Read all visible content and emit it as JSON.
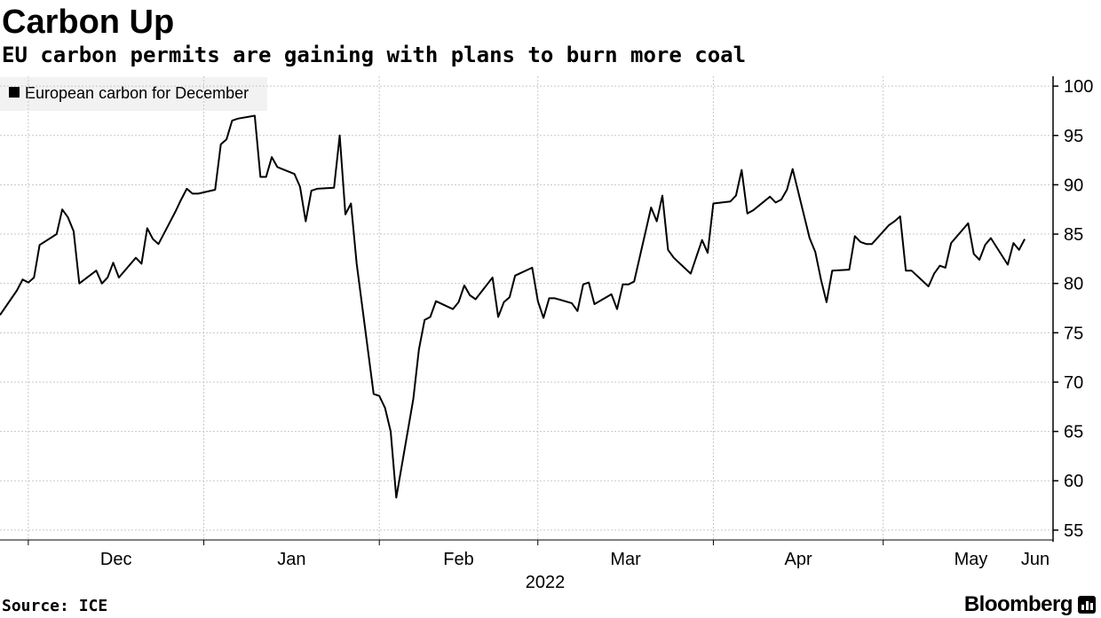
{
  "brand": {
    "name": "Bloomberg",
    "icon": "bloomberg-chart-icon"
  },
  "source": "Source: ICE",
  "chart_data": {
    "type": "line",
    "title": "Carbon Up",
    "subtitle": "EU carbon permits are gaining with plans to burn more coal",
    "legend": {
      "position": "top-left",
      "entries": [
        "European carbon for December"
      ]
    },
    "series": [
      {
        "name": "European carbon for December",
        "color": "#000000",
        "points": [
          [
            "2021-11-26",
            76.8
          ],
          [
            "2021-11-29",
            79.3
          ],
          [
            "2021-11-30",
            80.4
          ],
          [
            "2021-12-01",
            80.1
          ],
          [
            "2021-12-02",
            80.6
          ],
          [
            "2021-12-03",
            83.9
          ],
          [
            "2021-12-06",
            85.0
          ],
          [
            "2021-12-07",
            87.5
          ],
          [
            "2021-12-08",
            86.7
          ],
          [
            "2021-12-09",
            85.3
          ],
          [
            "2021-12-10",
            80.0
          ],
          [
            "2021-12-13",
            81.3
          ],
          [
            "2021-12-14",
            80.0
          ],
          [
            "2021-12-15",
            80.6
          ],
          [
            "2021-12-16",
            82.1
          ],
          [
            "2021-12-17",
            80.6
          ],
          [
            "2021-12-20",
            82.6
          ],
          [
            "2021-12-21",
            82.0
          ],
          [
            "2021-12-22",
            85.6
          ],
          [
            "2021-12-23",
            84.5
          ],
          [
            "2021-12-24",
            84.0
          ],
          [
            "2021-12-27",
            87.3
          ],
          [
            "2021-12-28",
            88.5
          ],
          [
            "2021-12-29",
            89.6
          ],
          [
            "2021-12-30",
            89.1
          ],
          [
            "2021-12-31",
            89.1
          ],
          [
            "2022-01-03",
            89.5
          ],
          [
            "2022-01-04",
            94.1
          ],
          [
            "2022-01-05",
            94.6
          ],
          [
            "2022-01-06",
            96.5
          ],
          [
            "2022-01-07",
            96.7
          ],
          [
            "2022-01-10",
            97.0
          ],
          [
            "2022-01-11",
            90.8
          ],
          [
            "2022-01-12",
            90.8
          ],
          [
            "2022-01-13",
            92.8
          ],
          [
            "2022-01-14",
            91.8
          ],
          [
            "2022-01-17",
            91.1
          ],
          [
            "2022-01-18",
            89.8
          ],
          [
            "2022-01-19",
            86.3
          ],
          [
            "2022-01-20",
            89.4
          ],
          [
            "2022-01-21",
            89.6
          ],
          [
            "2022-01-24",
            89.7
          ],
          [
            "2022-01-25",
            95.0
          ],
          [
            "2022-01-26",
            87.0
          ],
          [
            "2022-01-27",
            88.1
          ],
          [
            "2022-01-28",
            82.0
          ],
          [
            "2022-01-31",
            68.8
          ],
          [
            "2022-02-01",
            68.6
          ],
          [
            "2022-02-02",
            67.4
          ],
          [
            "2022-02-03",
            65.0
          ],
          [
            "2022-02-04",
            58.3
          ],
          [
            "2022-02-07",
            68.3
          ],
          [
            "2022-02-08",
            73.3
          ],
          [
            "2022-02-09",
            76.3
          ],
          [
            "2022-02-10",
            76.6
          ],
          [
            "2022-02-11",
            78.2
          ],
          [
            "2022-02-14",
            77.4
          ],
          [
            "2022-02-15",
            78.1
          ],
          [
            "2022-02-16",
            79.8
          ],
          [
            "2022-02-17",
            78.8
          ],
          [
            "2022-02-18",
            78.4
          ],
          [
            "2022-02-21",
            80.6
          ],
          [
            "2022-02-22",
            76.6
          ],
          [
            "2022-02-23",
            78.1
          ],
          [
            "2022-02-24",
            78.6
          ],
          [
            "2022-02-25",
            80.8
          ],
          [
            "2022-02-28",
            81.6
          ],
          [
            "2022-03-01",
            78.2
          ],
          [
            "2022-03-02",
            76.5
          ],
          [
            "2022-03-03",
            78.5
          ],
          [
            "2022-03-04",
            78.5
          ],
          [
            "2022-03-07",
            78.0
          ],
          [
            "2022-03-08",
            77.2
          ],
          [
            "2022-03-09",
            79.9
          ],
          [
            "2022-03-10",
            80.1
          ],
          [
            "2022-03-11",
            77.9
          ],
          [
            "2022-03-14",
            78.9
          ],
          [
            "2022-03-15",
            77.4
          ],
          [
            "2022-03-16",
            79.9
          ],
          [
            "2022-03-17",
            79.9
          ],
          [
            "2022-03-18",
            80.2
          ],
          [
            "2022-03-21",
            87.7
          ],
          [
            "2022-03-22",
            86.3
          ],
          [
            "2022-03-23",
            88.9
          ],
          [
            "2022-03-24",
            83.4
          ],
          [
            "2022-03-25",
            82.6
          ],
          [
            "2022-03-28",
            81.0
          ],
          [
            "2022-03-29",
            82.7
          ],
          [
            "2022-03-30",
            84.4
          ],
          [
            "2022-03-31",
            83.1
          ],
          [
            "2022-04-01",
            88.1
          ],
          [
            "2022-04-04",
            88.3
          ],
          [
            "2022-04-05",
            88.9
          ],
          [
            "2022-04-06",
            91.5
          ],
          [
            "2022-04-07",
            87.1
          ],
          [
            "2022-04-08",
            87.4
          ],
          [
            "2022-04-11",
            88.8
          ],
          [
            "2022-04-12",
            88.2
          ],
          [
            "2022-04-13",
            88.5
          ],
          [
            "2022-04-14",
            89.5
          ],
          [
            "2022-04-15",
            91.6
          ],
          [
            "2022-04-18",
            84.6
          ],
          [
            "2022-04-19",
            83.2
          ],
          [
            "2022-04-20",
            80.4
          ],
          [
            "2022-04-21",
            78.1
          ],
          [
            "2022-04-22",
            81.3
          ],
          [
            "2022-04-25",
            81.4
          ],
          [
            "2022-04-26",
            84.8
          ],
          [
            "2022-04-27",
            84.2
          ],
          [
            "2022-04-28",
            84.0
          ],
          [
            "2022-04-29",
            84.0
          ],
          [
            "2022-05-02",
            85.9
          ],
          [
            "2022-05-03",
            86.3
          ],
          [
            "2022-05-04",
            86.8
          ],
          [
            "2022-05-05",
            81.3
          ],
          [
            "2022-05-06",
            81.3
          ],
          [
            "2022-05-09",
            79.7
          ],
          [
            "2022-05-10",
            81.0
          ],
          [
            "2022-05-11",
            81.8
          ],
          [
            "2022-05-12",
            81.6
          ],
          [
            "2022-05-13",
            84.1
          ],
          [
            "2022-05-16",
            86.1
          ],
          [
            "2022-05-17",
            83.0
          ],
          [
            "2022-05-18",
            82.4
          ],
          [
            "2022-05-19",
            83.9
          ],
          [
            "2022-05-20",
            84.6
          ],
          [
            "2022-05-23",
            81.9
          ],
          [
            "2022-05-24",
            84.1
          ],
          [
            "2022-05-25",
            83.4
          ],
          [
            "2022-05-26",
            84.5
          ]
        ]
      }
    ],
    "x_axis": {
      "type": "date",
      "range": [
        "2021-11-26",
        "2022-05-31"
      ],
      "tick_labels": [
        {
          "label": "Dec",
          "date": "2021-12-01"
        },
        {
          "label": "Jan",
          "date": "2022-01-01"
        },
        {
          "label": "Feb",
          "date": "2022-02-01"
        },
        {
          "label": "Mar",
          "date": "2022-03-01"
        },
        {
          "label": "Apr",
          "date": "2022-04-01"
        },
        {
          "label": "May",
          "date": "2022-05-01"
        },
        {
          "label": "Jun",
          "date": "2022-06-01"
        }
      ],
      "year_label": "2022"
    },
    "y_axis": {
      "position": "right",
      "ylim": [
        54,
        101
      ],
      "ticks": [
        55,
        60,
        65,
        70,
        75,
        80,
        85,
        90,
        95,
        100
      ]
    },
    "grid": true
  }
}
